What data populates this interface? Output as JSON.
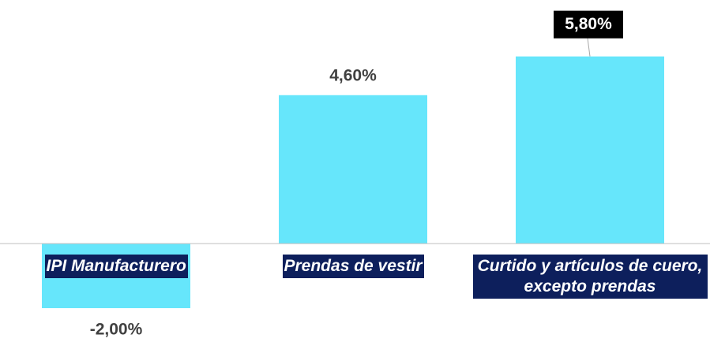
{
  "chart_data": {
    "type": "bar",
    "categories": [
      "IPI Manufacturero",
      "Prendas de vestir",
      "Curtido y artículos de cuero, excepto prendas"
    ],
    "values": [
      -2.0,
      4.6,
      5.8
    ],
    "value_labels": [
      "-2,00%",
      "4,60%",
      "5,80%"
    ],
    "color": "#66e6fb",
    "ylim": [
      -3,
      7.5
    ]
  }
}
